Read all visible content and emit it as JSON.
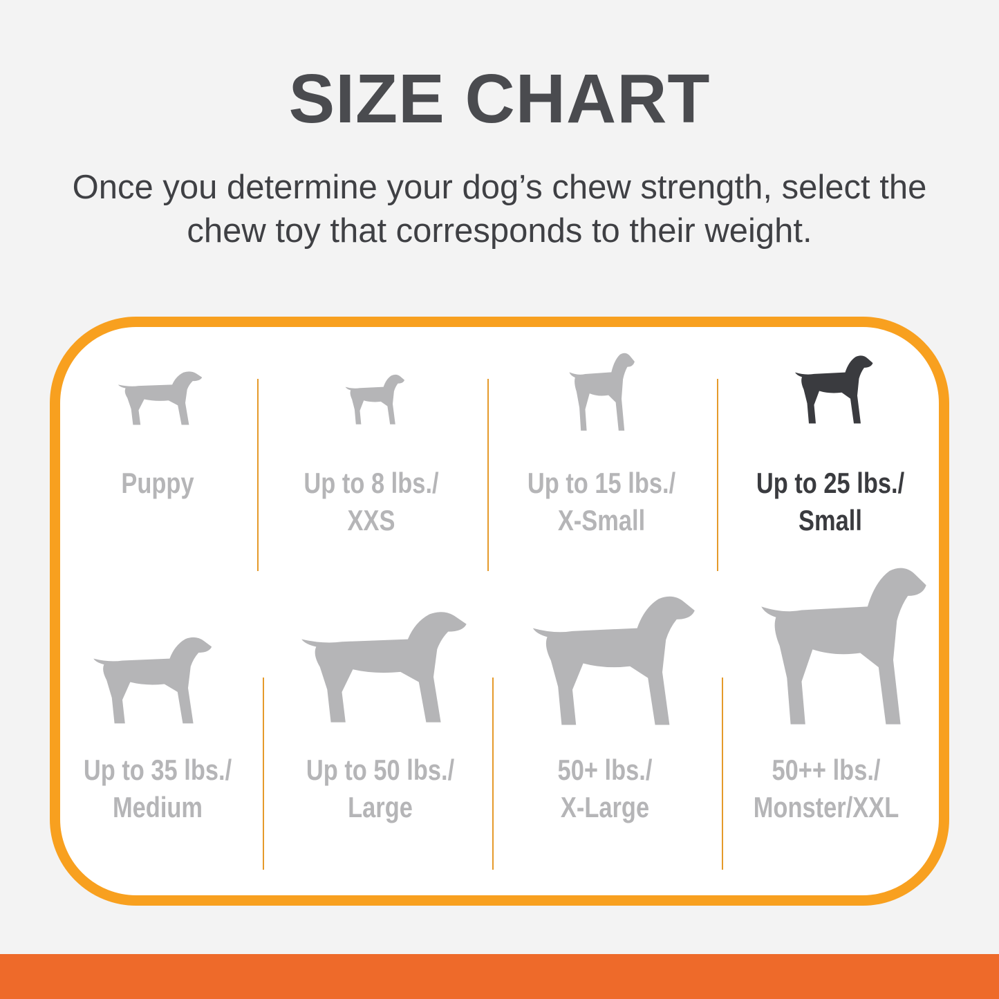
{
  "title": "SIZE CHART",
  "subtitle": [
    "Once you determine your dog’s chew strength, select the",
    "chew toy that corresponds to their weight."
  ],
  "colors": {
    "border": "#f8a01f",
    "bottom_bar": "#ee6a2a",
    "inactive": "#b5b5b7",
    "active": "#3a3b3f"
  },
  "sizes": [
    {
      "line1": "Puppy",
      "line2": "",
      "icon": "puppy-icon",
      "active": false
    },
    {
      "line1": "Up to 8 lbs./",
      "line2": "XXS",
      "icon": "chihuahua-icon",
      "active": false
    },
    {
      "line1": "Up to 15 lbs./",
      "line2": "X-Small",
      "icon": "toy-dog-icon",
      "active": false
    },
    {
      "line1": "Up to 25 lbs./",
      "line2": "Small",
      "icon": "terrier-icon",
      "active": true
    },
    {
      "line1": "Up to 35 lbs./",
      "line2": "Medium",
      "icon": "beagle-icon",
      "active": false
    },
    {
      "line1": "Up to 50 lbs./",
      "line2": "Large",
      "icon": "retriever-icon",
      "active": false
    },
    {
      "line1": "50+ lbs./",
      "line2": "X-Large",
      "icon": "shepherd-icon",
      "active": false
    },
    {
      "line1": "50++ lbs./",
      "line2": "Monster/XXL",
      "icon": "great-dane-icon",
      "active": false
    }
  ]
}
